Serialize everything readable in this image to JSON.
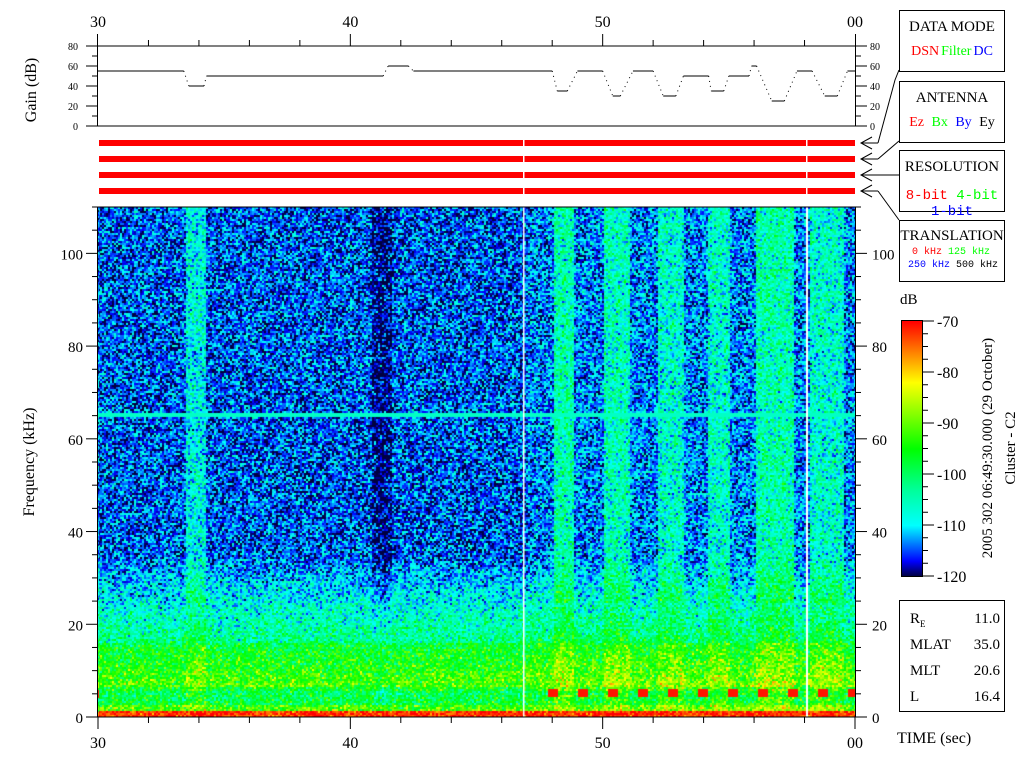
{
  "chart_data": [
    {
      "type": "line",
      "ylabel": "Gain (dB)",
      "xlim": [
        30,
        60
      ],
      "ylim": [
        0,
        80
      ],
      "x_tick_labels": [
        "30",
        "40",
        "50",
        "00"
      ],
      "y_tick_labels": [
        "0",
        "20",
        "40",
        "60",
        "80"
      ],
      "series": [
        {
          "values": [
            [
              30,
              33.4,
              55
            ],
            [
              33.6,
              34.2,
              40
            ],
            [
              34.3,
              41.3,
              50
            ],
            [
              41.5,
              42.3,
              60
            ],
            [
              42.5,
              48.0,
              55
            ],
            [
              48.2,
              48.6,
              35
            ],
            [
              49.0,
              50.0,
              55
            ],
            [
              50.4,
              50.7,
              30
            ],
            [
              51.2,
              52.0,
              55
            ],
            [
              52.4,
              52.9,
              30
            ],
            [
              53.2,
              54.2,
              50
            ],
            [
              54.3,
              54.8,
              35
            ],
            [
              55.0,
              55.8,
              50
            ],
            [
              55.9,
              56.1,
              60
            ],
            [
              56.7,
              57.2,
              25
            ],
            [
              57.7,
              58.3,
              55
            ],
            [
              58.8,
              59.3,
              30
            ],
            [
              59.7,
              60,
              55
            ]
          ]
        }
      ]
    },
    {
      "type": "heatmap",
      "xlabel": "TIME (sec)",
      "ylabel": "Frequency (kHz)",
      "xlim": [
        30,
        60
      ],
      "ylim": [
        0,
        110
      ],
      "zlim": [
        -120,
        -70
      ],
      "x_tick_labels": [
        "30",
        "40",
        "50",
        "00"
      ],
      "y_tick_labels": [
        "0",
        "20",
        "40",
        "60",
        "80",
        "100"
      ],
      "colorbar": {
        "label": "dB",
        "tick_labels": [
          "-70",
          "-80",
          "-90",
          "-100",
          "-110",
          "-120"
        ]
      },
      "colormap": [
        "#000040",
        "#0000ff",
        "#00ffff",
        "#00ff99",
        "#00ff00",
        "#ffff00",
        "#ff8000",
        "#ff0000"
      ]
    }
  ],
  "status_bars": {
    "count": 4,
    "color": "#ff0000"
  },
  "panels": {
    "data_mode": {
      "title": "DATA MODE",
      "items": [
        {
          "label": "DSN",
          "color": "#ff0000"
        },
        {
          "label": "Filter",
          "color": "#00ff00"
        },
        {
          "label": "DC",
          "color": "#0000ff"
        }
      ]
    },
    "antenna": {
      "title": "ANTENNA",
      "items": [
        {
          "label": "Ez",
          "color": "#ff0000"
        },
        {
          "label": "Bx",
          "color": "#00ff00"
        },
        {
          "label": "By",
          "color": "#0000ff"
        },
        {
          "label": "Ey",
          "color": "#000000"
        }
      ]
    },
    "resolution": {
      "title": "RESOLUTION",
      "items": [
        {
          "label": "8-bit",
          "color": "#ff0000"
        },
        {
          "label": "4-bit",
          "color": "#00ff00"
        },
        {
          "label": "1-bit",
          "color": "#0000ff"
        }
      ]
    },
    "translation": {
      "title": "TRANSLATION",
      "items": [
        {
          "label": "0 kHz",
          "color": "#ff0000"
        },
        {
          "label": "125 kHz",
          "color": "#00ff00"
        },
        {
          "label": "250 kHz",
          "color": "#0000ff"
        },
        {
          "label": "500 kHz",
          "color": "#000000"
        }
      ]
    }
  },
  "timestamp": "2005 302 06:49:30.000 (29 October)",
  "spacecraft": "Cluster - C2",
  "info": [
    {
      "label": "R",
      "sub": "E",
      "value": "11.0"
    },
    {
      "label": "MLAT",
      "value": "35.0"
    },
    {
      "label": "MLT",
      "value": "20.6"
    },
    {
      "label": "L",
      "value": "16.4"
    }
  ]
}
